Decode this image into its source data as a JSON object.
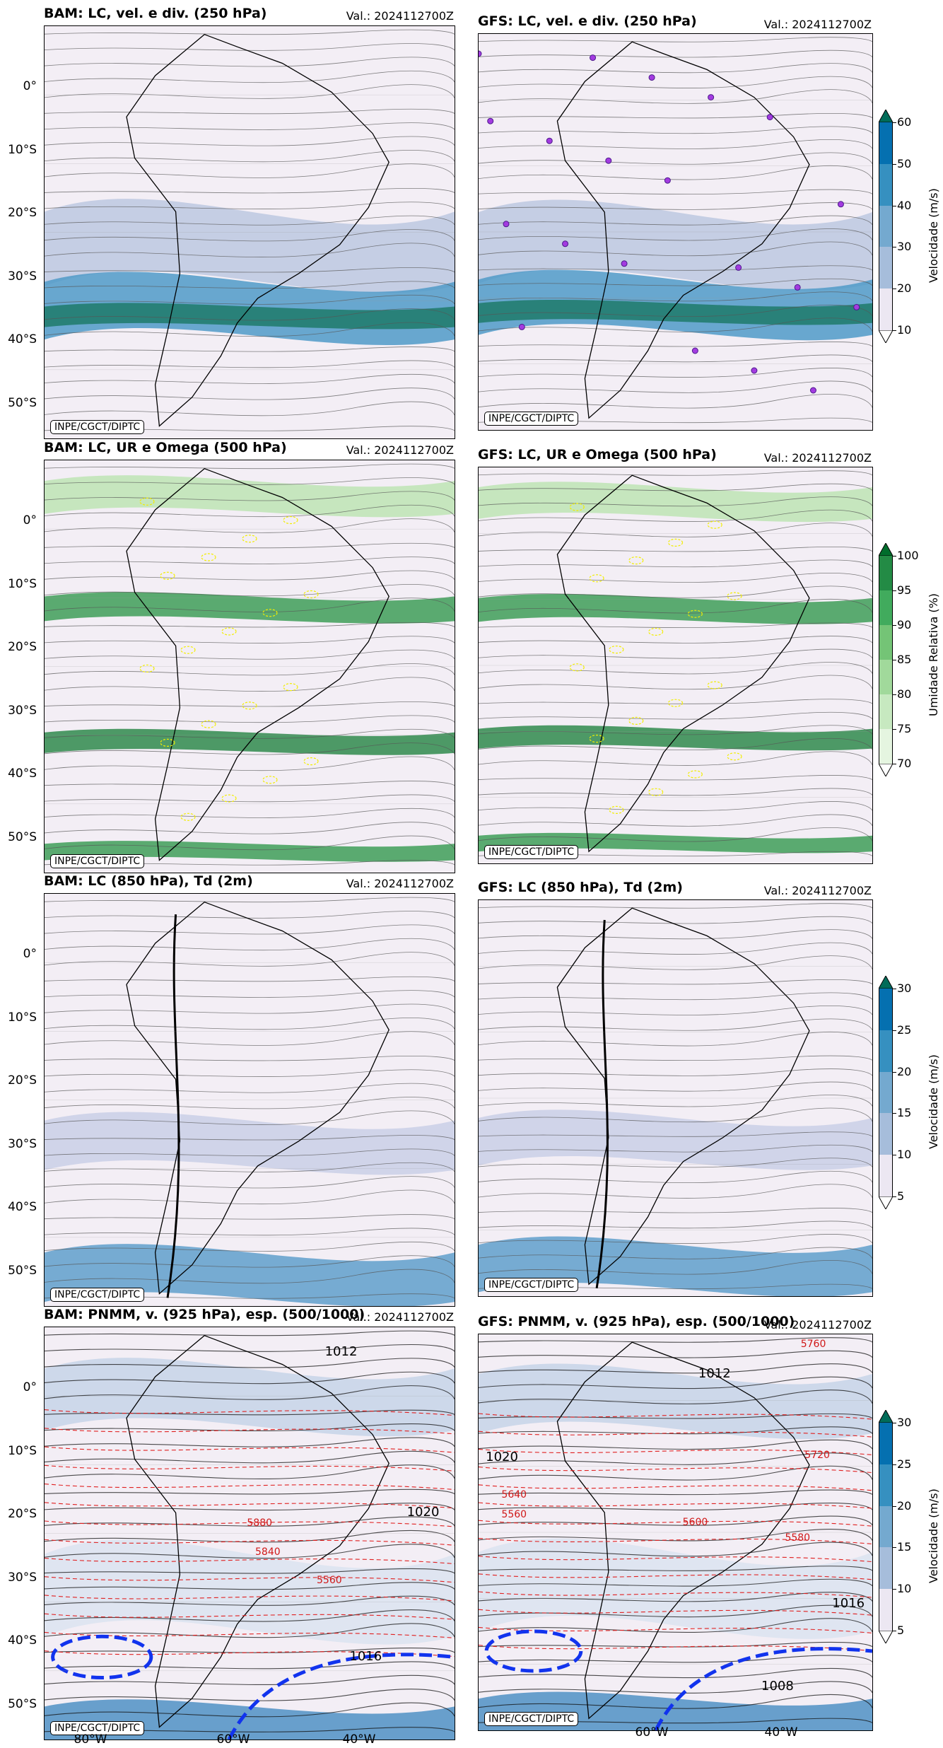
{
  "credit": "INPE/CGCT/DIPTC",
  "valid": "Val.: 2024112700Z",
  "lat_ticks": [
    "0°",
    "10°S",
    "20°S",
    "30°S",
    "40°S",
    "50°S"
  ],
  "lon_ticks": [
    "80°W",
    "60°W",
    "40°W"
  ],
  "rows": [
    {
      "left_title": "BAM: LC, vel. e div. (250 hPa)",
      "right_title": "GFS: LC, vel. e div. (250 hPa)",
      "colorbar": {
        "label": "Velocidade (m/s)",
        "ticks": [
          "10",
          "20",
          "30",
          "40",
          "50",
          "60"
        ],
        "colors": [
          "#ece7f2",
          "#a6bddb",
          "#74a9cf",
          "#3690c0",
          "#0570b0",
          "#016c59"
        ]
      }
    },
    {
      "left_title": "BAM: LC, UR e Omega (500 hPa)",
      "right_title": "GFS: LC, UR e Omega (500 hPa)",
      "colorbar": {
        "label": "Umidade Relativa (%)",
        "ticks": [
          "70",
          "75",
          "80",
          "85",
          "90",
          "95",
          "100"
        ],
        "colors": [
          "#e5f5e0",
          "#c7e9c0",
          "#a1d99b",
          "#74c476",
          "#41ab5d",
          "#238b45",
          "#006d2c"
        ]
      }
    },
    {
      "left_title": "BAM: LC (850 hPa), Td (2m)",
      "right_title": "GFS: LC (850 hPa), Td (2m)",
      "colorbar": {
        "label": "Velocidade (m/s)",
        "ticks": [
          "5",
          "10",
          "15",
          "20",
          "25",
          "30"
        ],
        "colors": [
          "#ece7f2",
          "#a6bddb",
          "#74a9cf",
          "#3690c0",
          "#0570b0",
          "#016c59"
        ]
      }
    },
    {
      "left_title": "BAM: PNMM, v. (925 hPa), esp. (500/1000)",
      "right_title": "GFS: PNMM, v. (925 hPa), esp. (500/1000)",
      "colorbar": {
        "label": "Velocidade (m/s)",
        "ticks": [
          "5",
          "10",
          "15",
          "20",
          "25",
          "30"
        ],
        "colors": [
          "#ece7f2",
          "#a6bddb",
          "#74a9cf",
          "#3690c0",
          "#0570b0",
          "#016c59"
        ]
      }
    }
  ],
  "contour_labels": {
    "bam_pnmm": [
      "1012",
      "1016",
      "1020",
      "5840",
      "5560",
      "5880"
    ],
    "gfs_pnmm": [
      "1012",
      "1016",
      "1020",
      "1008",
      "5760",
      "5720",
      "5640",
      "5560",
      "5580",
      "5600"
    ]
  }
}
